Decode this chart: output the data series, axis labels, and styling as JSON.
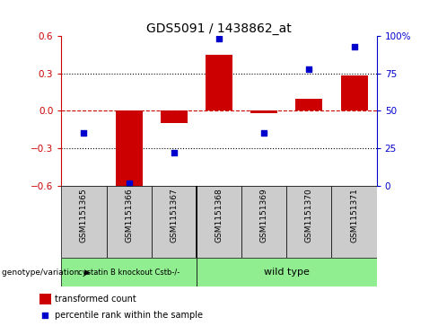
{
  "title": "GDS5091 / 1438862_at",
  "samples": [
    "GSM1151365",
    "GSM1151366",
    "GSM1151367",
    "GSM1151368",
    "GSM1151369",
    "GSM1151370",
    "GSM1151371"
  ],
  "transformed_count": [
    0.0,
    -0.6,
    -0.1,
    0.45,
    -0.02,
    0.1,
    0.28
  ],
  "percentile_rank": [
    35,
    2,
    22,
    98,
    35,
    78,
    93
  ],
  "ylim": [
    -0.6,
    0.6
  ],
  "y2lim": [
    0,
    100
  ],
  "yticks": [
    -0.6,
    -0.3,
    0.0,
    0.3,
    0.6
  ],
  "y2ticks": [
    0,
    25,
    50,
    75,
    100
  ],
  "y2ticklabels": [
    "0",
    "25",
    "50",
    "75",
    "100%"
  ],
  "group_boundaries": [
    3
  ],
  "group1_label": "cystatin B knockout Cstb-/-",
  "group2_label": "wild type",
  "group_color": "#90EE90",
  "bar_color": "#CC0000",
  "dot_color": "#0000CC",
  "zero_line_color": "#CC0000",
  "grid_color": "#000000",
  "bg_color": "#FFFFFF",
  "sample_box_color": "#CCCCCC",
  "legend_bar_label": "transformed count",
  "legend_dot_label": "percentile rank within the sample",
  "genotype_label": "genotype/variation"
}
